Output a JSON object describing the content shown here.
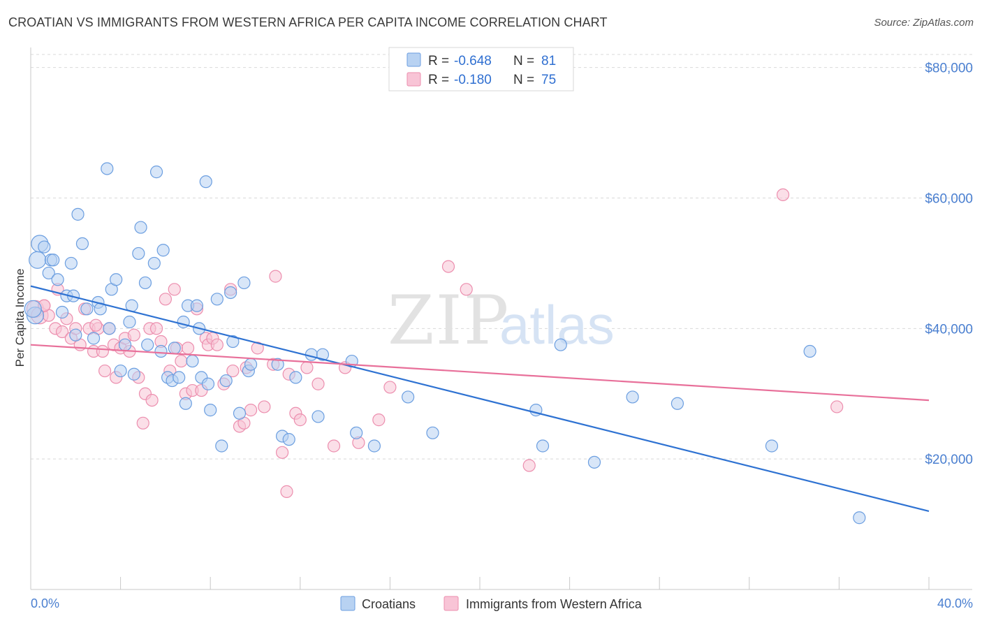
{
  "title": "CROATIAN VS IMMIGRANTS FROM WESTERN AFRICA PER CAPITA INCOME CORRELATION CHART",
  "source": "Source: ZipAtlas.com",
  "watermark": {
    "zip": "ZIP",
    "atlas": "atlas"
  },
  "colors": {
    "blue_fill": "#b8d2f2",
    "blue_stroke": "#6b9ee0",
    "blue_line": "#2e72d2",
    "pink_fill": "#f8c4d6",
    "pink_stroke": "#ec8eae",
    "pink_line": "#e8709a",
    "axis_text": "#4a7fd0",
    "grid": "#d9d9d9"
  },
  "legend": {
    "rows": [
      {
        "r_label": "R =",
        "r_value": "-0.648",
        "n_label": "N =",
        "n_value": "81"
      },
      {
        "r_label": "R =",
        "r_value": "-0.180",
        "n_label": "N =",
        "n_value": "75"
      }
    ]
  },
  "bottom_legend": {
    "series_a": "Croatians",
    "series_b": "Immigrants from Western Africa"
  },
  "chart_data": {
    "type": "scatter",
    "title": "CROATIAN VS IMMIGRANTS FROM WESTERN AFRICA PER CAPITA INCOME CORRELATION CHART",
    "ylabel": "Per Capita Income",
    "xlabel": "",
    "xlim": [
      0,
      40
    ],
    "ylim": [
      0,
      82000
    ],
    "x_tick_labels": {
      "min": "0.0%",
      "max": "40.0%"
    },
    "y_ticks": [
      {
        "value": 20000,
        "label": "$20,000"
      },
      {
        "value": 40000,
        "label": "$40,000"
      },
      {
        "value": 60000,
        "label": "$60,000"
      },
      {
        "value": 80000,
        "label": "$80,000"
      }
    ],
    "grid": true,
    "legend_position": "top-center",
    "series": [
      {
        "name": "Croatians",
        "r": -0.648,
        "n": 81,
        "trend": {
          "x0": 0.0,
          "y0": 46500,
          "x1": 40.0,
          "y1": 12000
        },
        "points": [
          [
            0.2,
            42000
          ],
          [
            0.3,
            50500
          ],
          [
            0.4,
            53000
          ],
          [
            0.6,
            52500
          ],
          [
            0.8,
            48500
          ],
          [
            0.9,
            50500
          ],
          [
            1.0,
            50500
          ],
          [
            1.2,
            47500
          ],
          [
            1.4,
            42500
          ],
          [
            1.6,
            45000
          ],
          [
            1.8,
            50000
          ],
          [
            1.9,
            45000
          ],
          [
            2.0,
            39000
          ],
          [
            2.1,
            57500
          ],
          [
            2.3,
            53000
          ],
          [
            2.5,
            43000
          ],
          [
            2.8,
            38500
          ],
          [
            3.0,
            44000
          ],
          [
            3.1,
            43000
          ],
          [
            3.4,
            64500
          ],
          [
            3.5,
            40000
          ],
          [
            3.6,
            46000
          ],
          [
            3.8,
            47500
          ],
          [
            4.0,
            33500
          ],
          [
            4.2,
            37500
          ],
          [
            4.4,
            41000
          ],
          [
            4.5,
            43500
          ],
          [
            4.6,
            33000
          ],
          [
            4.8,
            51500
          ],
          [
            4.9,
            55500
          ],
          [
            5.1,
            47000
          ],
          [
            5.2,
            37500
          ],
          [
            5.5,
            50000
          ],
          [
            5.6,
            64000
          ],
          [
            5.8,
            36500
          ],
          [
            5.9,
            52000
          ],
          [
            6.1,
            32500
          ],
          [
            6.3,
            32000
          ],
          [
            6.4,
            37000
          ],
          [
            6.6,
            32500
          ],
          [
            6.8,
            41000
          ],
          [
            6.9,
            28500
          ],
          [
            7.0,
            43500
          ],
          [
            7.2,
            35000
          ],
          [
            7.4,
            43500
          ],
          [
            7.5,
            40000
          ],
          [
            7.6,
            32500
          ],
          [
            7.8,
            62500
          ],
          [
            7.9,
            31500
          ],
          [
            8.0,
            27500
          ],
          [
            8.3,
            44500
          ],
          [
            8.5,
            22000
          ],
          [
            8.7,
            32000
          ],
          [
            8.9,
            45500
          ],
          [
            9.0,
            38000
          ],
          [
            9.3,
            27000
          ],
          [
            9.5,
            47000
          ],
          [
            9.7,
            33500
          ],
          [
            9.8,
            34500
          ],
          [
            11.0,
            34500
          ],
          [
            11.2,
            23500
          ],
          [
            11.5,
            23000
          ],
          [
            11.8,
            32500
          ],
          [
            12.5,
            36000
          ],
          [
            12.8,
            26500
          ],
          [
            13.0,
            36000
          ],
          [
            14.3,
            35000
          ],
          [
            14.5,
            24000
          ],
          [
            15.3,
            22000
          ],
          [
            16.8,
            29500
          ],
          [
            17.9,
            24000
          ],
          [
            22.5,
            27500
          ],
          [
            22.8,
            22000
          ],
          [
            23.6,
            37500
          ],
          [
            25.1,
            19500
          ],
          [
            26.8,
            29500
          ],
          [
            28.8,
            28500
          ],
          [
            33.0,
            22000
          ],
          [
            34.7,
            36500
          ],
          [
            36.9,
            11000
          ],
          [
            0.1,
            43000
          ]
        ]
      },
      {
        "name": "Immigrants from Western Africa",
        "r": -0.18,
        "n": 75,
        "trend": {
          "x0": 0.0,
          "y0": 37500,
          "x1": 40.0,
          "y1": 29000
        },
        "points": [
          [
            0.2,
            43000
          ],
          [
            0.4,
            42000
          ],
          [
            0.6,
            43500
          ],
          [
            0.8,
            42000
          ],
          [
            1.1,
            40000
          ],
          [
            1.2,
            46000
          ],
          [
            1.4,
            39500
          ],
          [
            1.6,
            41500
          ],
          [
            1.8,
            38500
          ],
          [
            2.0,
            40000
          ],
          [
            2.2,
            37500
          ],
          [
            2.4,
            43000
          ],
          [
            2.6,
            40000
          ],
          [
            2.8,
            36500
          ],
          [
            3.0,
            40000
          ],
          [
            3.2,
            36500
          ],
          [
            3.3,
            33500
          ],
          [
            3.5,
            40000
          ],
          [
            3.7,
            37500
          ],
          [
            3.8,
            32500
          ],
          [
            4.0,
            37000
          ],
          [
            4.2,
            38500
          ],
          [
            4.4,
            36500
          ],
          [
            4.6,
            39000
          ],
          [
            4.8,
            32500
          ],
          [
            5.0,
            25500
          ],
          [
            5.1,
            30000
          ],
          [
            5.3,
            40000
          ],
          [
            5.4,
            29000
          ],
          [
            5.6,
            40000
          ],
          [
            5.8,
            38000
          ],
          [
            6.0,
            44500
          ],
          [
            6.2,
            33500
          ],
          [
            6.4,
            46000
          ],
          [
            6.5,
            37000
          ],
          [
            6.7,
            35000
          ],
          [
            6.9,
            30000
          ],
          [
            7.0,
            37000
          ],
          [
            7.2,
            30500
          ],
          [
            7.4,
            43000
          ],
          [
            7.6,
            30500
          ],
          [
            7.8,
            38500
          ],
          [
            7.9,
            37500
          ],
          [
            8.1,
            38500
          ],
          [
            8.3,
            37500
          ],
          [
            8.6,
            31500
          ],
          [
            8.9,
            46000
          ],
          [
            9.0,
            33500
          ],
          [
            9.3,
            25000
          ],
          [
            9.5,
            25500
          ],
          [
            9.6,
            34000
          ],
          [
            9.8,
            27500
          ],
          [
            10.1,
            37000
          ],
          [
            10.4,
            28000
          ],
          [
            10.8,
            34500
          ],
          [
            10.9,
            48000
          ],
          [
            11.2,
            21000
          ],
          [
            11.4,
            15000
          ],
          [
            11.5,
            33000
          ],
          [
            11.8,
            27000
          ],
          [
            12.0,
            26000
          ],
          [
            12.3,
            34000
          ],
          [
            12.8,
            31500
          ],
          [
            13.5,
            22000
          ],
          [
            14.0,
            34000
          ],
          [
            14.6,
            22500
          ],
          [
            15.5,
            26000
          ],
          [
            16.0,
            31000
          ],
          [
            18.6,
            49500
          ],
          [
            19.4,
            46000
          ],
          [
            22.2,
            19000
          ],
          [
            33.5,
            60500
          ],
          [
            35.9,
            28000
          ],
          [
            0.6,
            43500
          ],
          [
            2.9,
            40500
          ]
        ]
      }
    ]
  }
}
